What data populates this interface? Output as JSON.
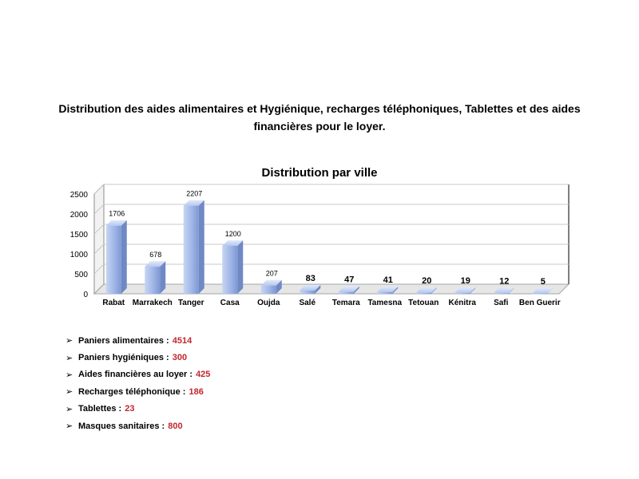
{
  "document": {
    "title_line1": "Distribution des aides alimentaires et Hygiénique, recharges téléphoniques, Tablettes et des aides",
    "title_line2": "financières pour le loyer."
  },
  "chart_data": {
    "type": "bar",
    "title": "Distribution par ville",
    "categories": [
      "Rabat",
      "Marrakech",
      "Tanger",
      "Casa",
      "Oujda",
      "Salé",
      "Temara",
      "Tamesna",
      "Tetouan",
      "Kénitra",
      "Safi",
      "Ben Guerir"
    ],
    "values": [
      1706,
      678,
      2207,
      1200,
      207,
      83,
      47,
      41,
      20,
      19,
      12,
      5
    ],
    "data_labels": [
      "1706",
      "678",
      "2207",
      "1200",
      "207",
      "83",
      "47",
      "41",
      "20",
      "19",
      "12",
      "5"
    ],
    "yticks": [
      "0",
      "500",
      "1000",
      "1500",
      "2000",
      "2500"
    ],
    "ylim": [
      0,
      2500
    ],
    "xlabel": "",
    "ylabel": "",
    "grid": true,
    "legend": "none",
    "style": "3d",
    "bar_color": "#8fa9dc"
  },
  "bullets": [
    {
      "label": "Paniers alimentaires : ",
      "value": "4514"
    },
    {
      "label": "Paniers hygiéniques : ",
      "value": "300"
    },
    {
      "label": "Aides financières au loyer : ",
      "value": "425"
    },
    {
      "label": "Recharges téléphonique : ",
      "value": "186"
    },
    {
      "label": "Tablettes : ",
      "value": "23"
    },
    {
      "label": "Masques sanitaires : ",
      "value": "800"
    }
  ],
  "icons": {
    "bullet": "arrow-right-icon"
  },
  "colors": {
    "value_text": "#c0272d",
    "bar": "#8fa9dc"
  }
}
